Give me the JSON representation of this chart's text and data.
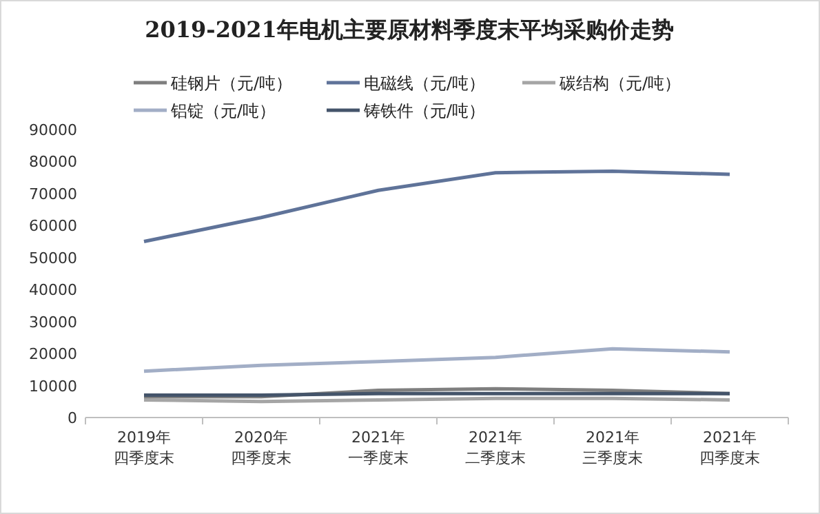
{
  "chart_data": {
    "type": "line",
    "title": "2019-2021年电机主要原材料季度末平均采购价走势",
    "categories": [
      "2019年四季度末",
      "2020年四季度末",
      "2021年一季度末",
      "2021年二季度末",
      "2021年三季度末",
      "2021年四季度末"
    ],
    "series": [
      {
        "name": "硅钢片（元/吨）",
        "color": "#7f7f7f",
        "values": [
          6500,
          6500,
          8500,
          9000,
          8500,
          7500
        ]
      },
      {
        "name": "电磁线（元/吨）",
        "color": "#5f7399",
        "values": [
          55000,
          62500,
          71000,
          76500,
          77000,
          76000
        ]
      },
      {
        "name": "碳结构（元/吨）",
        "color": "#a5a5a5",
        "values": [
          5500,
          5000,
          5500,
          6000,
          6000,
          5500
        ]
      },
      {
        "name": "铝锭（元/吨）",
        "color": "#a2aec6",
        "values": [
          14500,
          16300,
          17500,
          18800,
          21500,
          20500
        ]
      },
      {
        "name": "铸铁件（元/吨）",
        "color": "#44546a",
        "values": [
          7000,
          7000,
          7500,
          7500,
          7500,
          7500
        ]
      }
    ],
    "ylim": [
      0,
      90000
    ],
    "yticks": [
      0,
      10000,
      20000,
      30000,
      40000,
      50000,
      60000,
      70000,
      80000,
      90000
    ],
    "grid": false,
    "legend": "top",
    "marker": "none",
    "line_style": "solid"
  }
}
